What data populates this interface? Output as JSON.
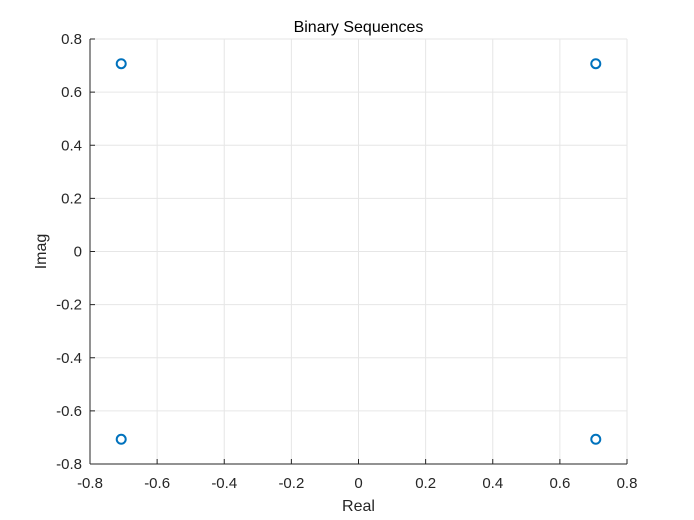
{
  "chart_data": {
    "type": "scatter",
    "title": "Binary Sequences",
    "xlabel": "Real",
    "ylabel": "Imag",
    "xlim": [
      -0.8,
      0.8
    ],
    "ylim": [
      -0.8,
      0.8
    ],
    "xticks": [
      "-0.8",
      "-0.6",
      "-0.4",
      "-0.2",
      "0",
      "0.2",
      "0.4",
      "0.6",
      "0.8"
    ],
    "yticks": [
      "0.8",
      "0.6",
      "0.4",
      "0.2",
      "0",
      "-0.2",
      "-0.4",
      "-0.6",
      "-0.8"
    ],
    "grid": true,
    "marker": "circle-open",
    "series": [
      {
        "x": [
          -0.707,
          0.707,
          -0.707,
          0.707
        ],
        "y": [
          0.707,
          0.707,
          -0.707,
          -0.707
        ],
        "color": "#0072BD"
      }
    ]
  }
}
